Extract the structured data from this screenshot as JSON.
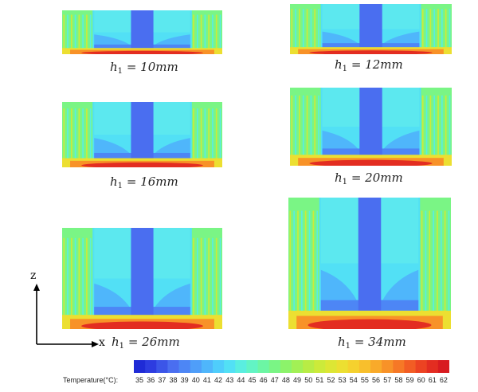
{
  "panels": [
    {
      "h_value": "10",
      "unit": "mm"
    },
    {
      "h_value": "12",
      "unit": "mm"
    },
    {
      "h_value": "16",
      "unit": "mm"
    },
    {
      "h_value": "20",
      "unit": "mm"
    },
    {
      "h_value": "26",
      "unit": "mm"
    },
    {
      "h_value": "34",
      "unit": "mm"
    }
  ],
  "symbol": "h",
  "subscript": "1",
  "axes": {
    "vertical": "z",
    "horizontal": "x"
  },
  "colorbar": {
    "label": "Temperature(°C):",
    "ticks": [
      "35",
      "36",
      "37",
      "38",
      "39",
      "40",
      "41",
      "42",
      "43",
      "44",
      "45",
      "46",
      "47",
      "48",
      "49",
      "50",
      "51",
      "52",
      "53",
      "54",
      "55",
      "56",
      "57",
      "58",
      "59",
      "60",
      "61",
      "62"
    ],
    "colors": [
      "#1f2bd6",
      "#2d3ce0",
      "#3b55e8",
      "#4a6ef0",
      "#4d86f5",
      "#4f9ef9",
      "#4fb6fb",
      "#4fcdfb",
      "#52e0f5",
      "#5aeee0",
      "#62f4c4",
      "#6cf6a4",
      "#7af585",
      "#8cf36a",
      "#a2f055",
      "#b8ec45",
      "#ccea3a",
      "#dde634",
      "#ecdf31",
      "#f5d12e",
      "#f8bf2c",
      "#f9aa2a",
      "#f89228",
      "#f67826",
      "#f25d24",
      "#ec4322",
      "#e32d21",
      "#d81b20"
    ]
  }
}
